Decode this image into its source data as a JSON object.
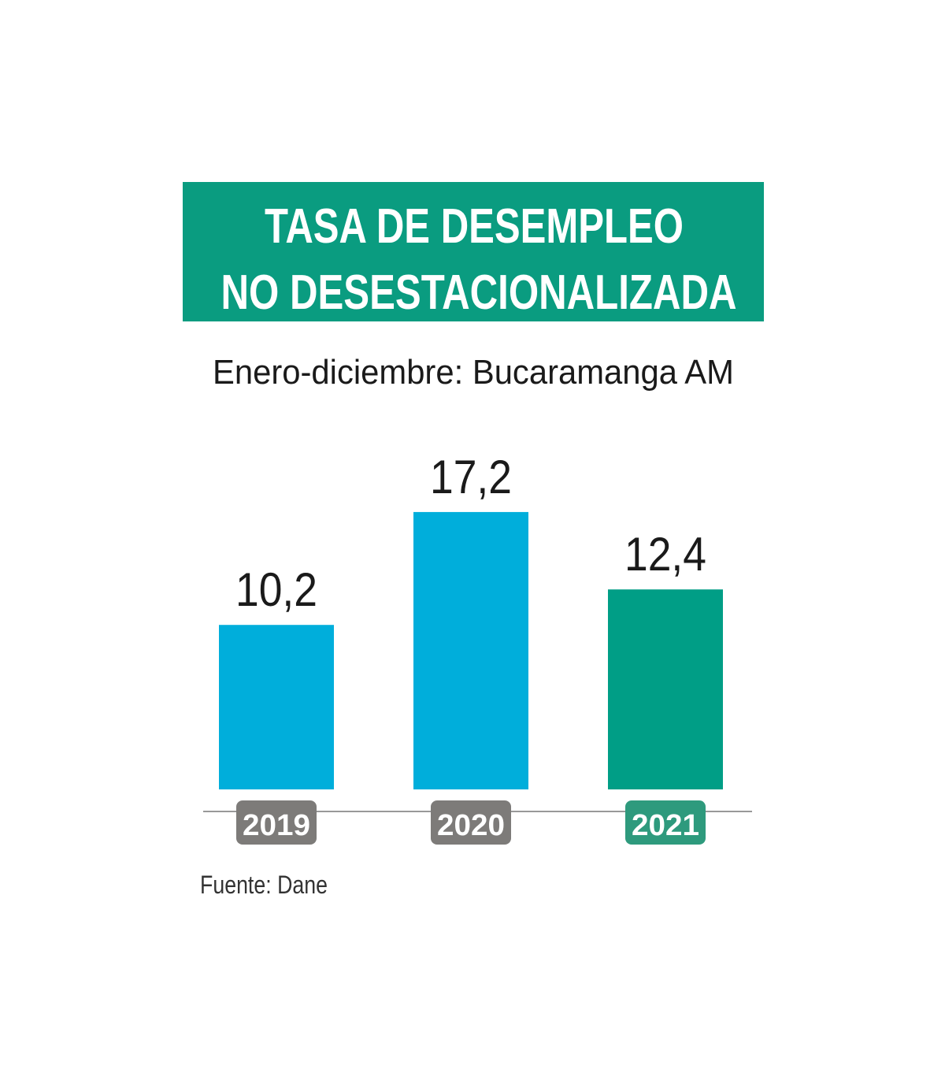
{
  "chart_data": {
    "type": "bar",
    "title": [
      "TASA DE DESEMPLEO",
      "NO DESESTACIONALIZADA"
    ],
    "subtitle": "Enero-diciembre: Bucaramanga AM",
    "categories": [
      "2019",
      "2020",
      "2021"
    ],
    "values": [
      10.2,
      17.2,
      12.4
    ],
    "value_labels": [
      "10,2",
      "17,2",
      "12,4"
    ],
    "colors": [
      "#00aedb",
      "#00aedb",
      "#009e86"
    ],
    "label_colors": [
      "#7d7b79",
      "#7d7b79",
      "#2e9a7d"
    ],
    "title_color": "#0a9c80",
    "source": "Fuente: Dane"
  }
}
